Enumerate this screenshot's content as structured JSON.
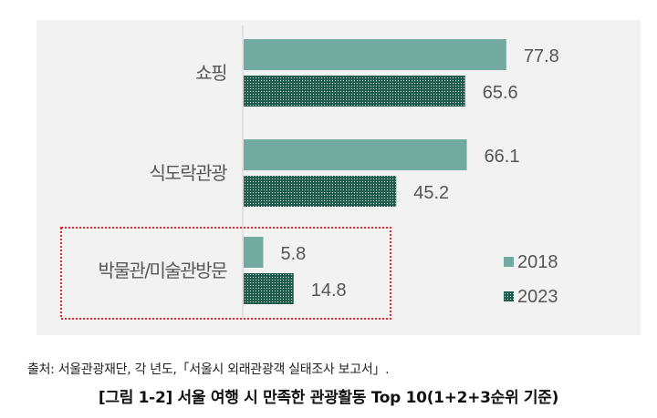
{
  "chart_data": {
    "type": "bar",
    "orientation": "horizontal",
    "categories": [
      "쇼핑",
      "식도락관광",
      "박물관/미술관방문"
    ],
    "series": [
      {
        "name": "2018",
        "values": [
          77.8,
          66.1,
          5.8
        ],
        "color": "#72aa9f",
        "pattern": "solid"
      },
      {
        "name": "2023",
        "values": [
          65.6,
          45.2,
          14.8
        ],
        "color": "#1f5c4c",
        "pattern": "dotted"
      }
    ],
    "xlim": [
      0,
      100
    ],
    "grid": false,
    "legend": "bottom-right",
    "highlight_category": "박물관/미술관방문",
    "highlight_color": "#e0262a"
  },
  "source": "출처: 서울관광재단, 각 년도,「서울시 외래관광객 실태조사 보고서」.",
  "caption": "[그림 1-2] 서울 여행 시 만족한 관광활동 Top 10(1+2+3순위 기준)"
}
